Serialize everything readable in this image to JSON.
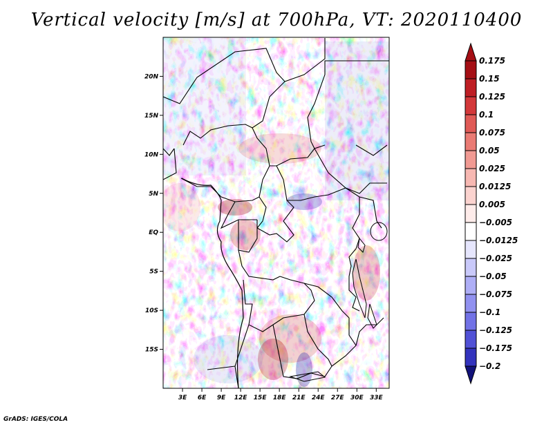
{
  "title": "Vertical velocity [m/s] at 700hPa, VT: 2020110400",
  "credit": "GrADS: IGES/COLA",
  "map": {
    "lat_range": [
      -20,
      25
    ],
    "lon_range": [
      0,
      35
    ],
    "lat_ticks": [
      {
        "value": 20,
        "label": "20N"
      },
      {
        "value": 15,
        "label": "15N"
      },
      {
        "value": 10,
        "label": "10N"
      },
      {
        "value": 5,
        "label": "5N"
      },
      {
        "value": 0,
        "label": "EQ"
      },
      {
        "value": -5,
        "label": "5S"
      },
      {
        "value": -10,
        "label": "10S"
      },
      {
        "value": -15,
        "label": "15S"
      }
    ],
    "lon_ticks": [
      {
        "value": 3,
        "label": "3E"
      },
      {
        "value": 6,
        "label": "6E"
      },
      {
        "value": 9,
        "label": "9E"
      },
      {
        "value": 12,
        "label": "12E"
      },
      {
        "value": 15,
        "label": "15E"
      },
      {
        "value": 18,
        "label": "18E"
      },
      {
        "value": 21,
        "label": "21E"
      },
      {
        "value": 24,
        "label": "24E"
      },
      {
        "value": 27,
        "label": "27E"
      },
      {
        "value": 30,
        "label": "30E"
      },
      {
        "value": 33,
        "label": "33E"
      }
    ]
  },
  "colorbar": {
    "levels": [
      {
        "label": "0.175",
        "color": "#a50f15"
      },
      {
        "label": "0.15",
        "color": "#be1e24"
      },
      {
        "label": "0.125",
        "color": "#d3383a"
      },
      {
        "label": "0.1",
        "color": "#e05a56"
      },
      {
        "label": "0.075",
        "color": "#ea7b74"
      },
      {
        "label": "0.05",
        "color": "#f19a93"
      },
      {
        "label": "0.025",
        "color": "#f7b8b2"
      },
      {
        "label": "0.0125",
        "color": "#fbd3cf"
      },
      {
        "label": "0.005",
        "color": "#feecea"
      },
      {
        "label": "-0.005",
        "color": "#ffffff"
      },
      {
        "label": "-0.0125",
        "color": "#e6e6fd"
      },
      {
        "label": "-0.025",
        "color": "#c9c9fa"
      },
      {
        "label": "-0.05",
        "color": "#aeaef6"
      },
      {
        "label": "-0.075",
        "color": "#9191f0"
      },
      {
        "label": "-0.1",
        "color": "#7272e6"
      },
      {
        "label": "-0.125",
        "color": "#5151d6"
      },
      {
        "label": "-0.175",
        "color": "#3333bd"
      },
      {
        "label": "-0.2",
        "color": "#1f1fa0"
      }
    ],
    "top_triangle_color": "#a50f15",
    "bottom_triangle_color": "#12127a"
  }
}
